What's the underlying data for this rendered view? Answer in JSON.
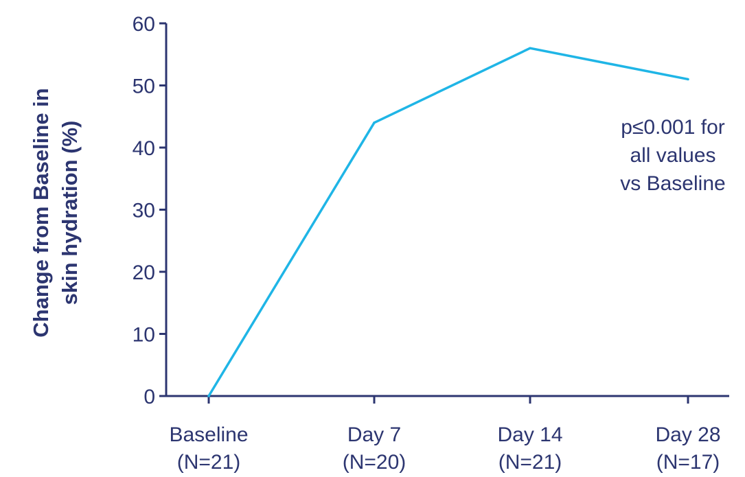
{
  "chart_data": {
    "type": "line",
    "categories": [
      [
        "Baseline",
        "(N=21)"
      ],
      [
        "Day 7",
        "(N=20)"
      ],
      [
        "Day 14",
        "(N=21)"
      ],
      [
        "Day 28",
        "(N=17)"
      ]
    ],
    "series": [
      {
        "values": [
          0,
          44,
          56,
          51
        ],
        "color": "#1fb5e6"
      }
    ],
    "ylabel": [
      "Change from Baseline in",
      "skin hydration (%)"
    ],
    "xlabel": "",
    "ylim": [
      0,
      60
    ],
    "yticks": [
      0,
      10,
      20,
      30,
      40,
      50,
      60
    ],
    "grid": false,
    "annotation": [
      "p≤0.001 for",
      "all values",
      "vs Baseline"
    ],
    "colors": {
      "axis": "#2c3570",
      "text": "#2c3570",
      "line": "#1fb5e6"
    }
  }
}
